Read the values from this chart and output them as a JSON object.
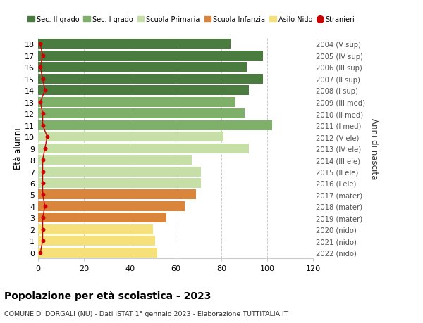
{
  "ages": [
    18,
    17,
    16,
    15,
    14,
    13,
    12,
    11,
    10,
    9,
    8,
    7,
    6,
    5,
    4,
    3,
    2,
    1,
    0
  ],
  "values": [
    84,
    98,
    91,
    98,
    92,
    86,
    90,
    102,
    81,
    92,
    67,
    71,
    71,
    69,
    64,
    56,
    50,
    51,
    52
  ],
  "stranieri": [
    1,
    2,
    1,
    2,
    3,
    1,
    2,
    2,
    4,
    3,
    2,
    2,
    2,
    2,
    3,
    2,
    2,
    2,
    1
  ],
  "right_labels": [
    "2004 (V sup)",
    "2005 (IV sup)",
    "2006 (III sup)",
    "2007 (II sup)",
    "2008 (I sup)",
    "2009 (III med)",
    "2010 (II med)",
    "2011 (I med)",
    "2012 (V ele)",
    "2013 (IV ele)",
    "2014 (III ele)",
    "2015 (II ele)",
    "2016 (I ele)",
    "2017 (mater)",
    "2018 (mater)",
    "2019 (mater)",
    "2020 (nido)",
    "2021 (nido)",
    "2022 (nido)"
  ],
  "bar_colors": [
    "#4a7c3f",
    "#4a7c3f",
    "#4a7c3f",
    "#4a7c3f",
    "#4a7c3f",
    "#7fb069",
    "#7fb069",
    "#7fb069",
    "#c5dfa6",
    "#c5dfa6",
    "#c5dfa6",
    "#c5dfa6",
    "#c5dfa6",
    "#d9853b",
    "#d9853b",
    "#d9853b",
    "#f5e07a",
    "#f5e07a",
    "#f5e07a"
  ],
  "legend_labels": [
    "Sec. II grado",
    "Sec. I grado",
    "Scuola Primaria",
    "Scuola Infanzia",
    "Asilo Nido",
    "Stranieri"
  ],
  "legend_colors": [
    "#4a7c3f",
    "#7fb069",
    "#c5dfa6",
    "#d9853b",
    "#f5e07a",
    "#cc0000"
  ],
  "ylabel_left": "Età alunni",
  "ylabel_right": "Anni di nascita",
  "title": "Popolazione per età scolastica - 2023",
  "subtitle": "COMUNE DI DORGALI (NU) - Dati ISTAT 1° gennaio 2023 - Elaborazione TUTTITALIA.IT",
  "xlim": [
    0,
    120
  ],
  "xticks": [
    0,
    20,
    40,
    60,
    80,
    100,
    120
  ],
  "background_color": "#ffffff",
  "grid_color": "#cccccc",
  "stranieri_color": "#cc0000",
  "bar_height": 0.85
}
